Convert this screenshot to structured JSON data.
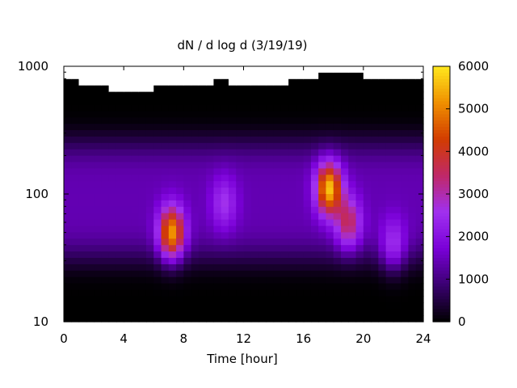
{
  "chart_data": {
    "type": "heatmap",
    "title": "dN / d log d (3/19/19)",
    "xlabel": "Time [hour]",
    "ylabel": "",
    "x_range": [
      0,
      24
    ],
    "x_ticks": [
      "0",
      "4",
      "8",
      "12",
      "16",
      "20",
      "24"
    ],
    "y_range": [
      10,
      1000
    ],
    "y_scale": "log",
    "y_ticks": [
      "10",
      "100",
      "1000"
    ],
    "colorbar": {
      "range": [
        0,
        6000
      ],
      "ticks": [
        "0",
        "1000",
        "2000",
        "3000",
        "4000",
        "5000",
        "6000"
      ],
      "palette": [
        "#000000",
        "#3a0070",
        "#7a00d8",
        "#a030f0",
        "#c02868",
        "#d23c00",
        "#f09000",
        "#ffe81e"
      ]
    },
    "background_level": 1400,
    "features": [
      {
        "time": 7.2,
        "diameter": 50,
        "peak": 5200
      },
      {
        "time": 10.7,
        "diameter": 85,
        "peak": 2600
      },
      {
        "time": 17.7,
        "diameter": 110,
        "peak": 5600
      },
      {
        "time": 19.0,
        "diameter": 60,
        "peak": 3500
      },
      {
        "time": 22.0,
        "diameter": 42,
        "peak": 2500
      }
    ],
    "upper_limit_diameter": [
      {
        "time": 0,
        "diameter": 750
      },
      {
        "time": 1,
        "diameter": 670
      },
      {
        "time": 3,
        "diameter": 600
      },
      {
        "time": 6,
        "diameter": 670
      },
      {
        "time": 7,
        "diameter": 740
      },
      {
        "time": 8.5,
        "diameter": 670
      },
      {
        "time": 9.5,
        "diameter": 740
      },
      {
        "time": 10.2,
        "diameter": 820
      },
      {
        "time": 11,
        "diameter": 740
      },
      {
        "time": 15,
        "diameter": 820
      },
      {
        "time": 17,
        "diameter": 860
      },
      {
        "time": 17.4,
        "diameter": 920
      },
      {
        "time": 19.5,
        "diameter": 920
      },
      {
        "time": 20,
        "diameter": 820
      },
      {
        "time": 22.5,
        "diameter": 760
      },
      {
        "time": 24,
        "diameter": 760
      }
    ]
  }
}
